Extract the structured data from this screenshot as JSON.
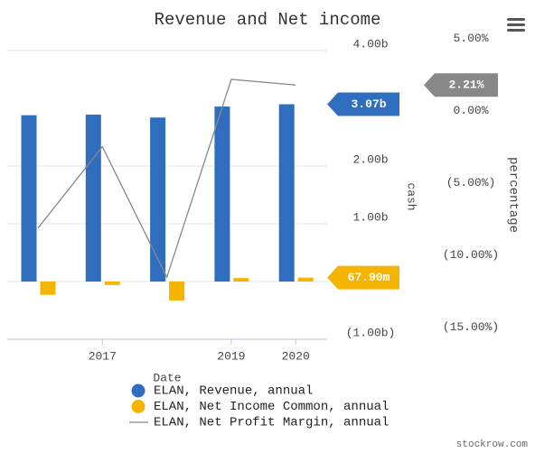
{
  "chart_data": {
    "type": "bar",
    "title": "Revenue and Net income",
    "x_label": "Date",
    "y_label": "cash",
    "y2_label": "percentage",
    "credit": "stockrow.com",
    "categories": [
      null,
      "2017",
      null,
      "2019",
      "2020"
    ],
    "ylim": [
      -1,
      4.25
    ],
    "yticks": [
      {
        "value": 4,
        "label": "4.00b"
      },
      {
        "value": 2,
        "label": "2.00b"
      },
      {
        "value": 1,
        "label": "1.00b"
      },
      {
        "value": -1,
        "label": "(1.00b)"
      }
    ],
    "y2lim": [
      -15.4,
      5.6
    ],
    "y2ticks": [
      {
        "value": 5,
        "label": "5.00%"
      },
      {
        "value": 0,
        "label": "0.00%"
      },
      {
        "value": -5,
        "label": "(5.00%)"
      },
      {
        "value": -10,
        "label": "(10.00%)"
      },
      {
        "value": -15,
        "label": "(15.00%)"
      }
    ],
    "grid": true,
    "series": [
      {
        "name": "ELAN, Revenue, annual",
        "type": "bar",
        "color": "#2f6ebf",
        "values": [
          2.88,
          2.89,
          2.84,
          3.03,
          3.07
        ],
        "value_labels": [
          null,
          null,
          null,
          null,
          "3.07b"
        ]
      },
      {
        "name": "ELAN, Net Income Common, annual",
        "type": "bar",
        "color": "#f5b400",
        "values": [
          -0.23,
          -0.06,
          -0.33,
          0.06,
          0.0679
        ],
        "value_labels": [
          null,
          null,
          null,
          null,
          "67.90m"
        ]
      },
      {
        "name": "ELAN, Net Profit Margin, annual",
        "type": "line",
        "axis": "y2",
        "color": "#888888",
        "values": [
          -7.7,
          -2.06,
          -11.1,
          2.6,
          2.21
        ],
        "value_labels": [
          null,
          null,
          null,
          null,
          "2.21%"
        ]
      }
    ]
  }
}
